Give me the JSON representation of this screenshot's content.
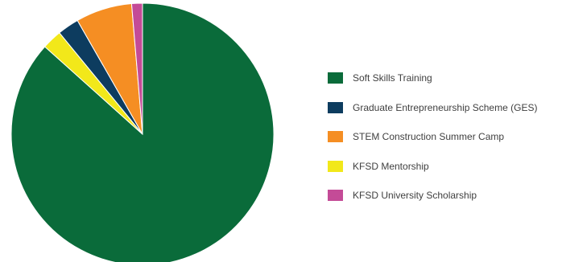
{
  "chart_data": {
    "type": "pie",
    "title": "",
    "legend_position": "right",
    "start_angle_deg": 0,
    "direction": "clockwise",
    "slices": [
      {
        "label": "Soft Skills Training",
        "value": 85.0,
        "color": "#0a6b3a"
      },
      {
        "label": "KFSD Mentorship",
        "value": 2.4,
        "color": "#f2e81a"
      },
      {
        "label": "Graduate Entrepreneurship Scheme (GES)",
        "value": 2.6,
        "color": "#0d3c5f"
      },
      {
        "label": "STEM Construction Summer Camp",
        "value": 6.8,
        "color": "#f58e23"
      },
      {
        "label": "KFSD University Scholarship",
        "value": 1.3,
        "color": "#c44b97"
      }
    ],
    "legend": [
      {
        "label": "Soft Skills Training",
        "color": "#0a6b3a"
      },
      {
        "label": "Graduate Entrepreneurship Scheme (GES)",
        "color": "#0d3c5f"
      },
      {
        "label": "STEM Construction Summer Camp",
        "color": "#f58e23"
      },
      {
        "label": "KFSD Mentorship",
        "color": "#f2e81a"
      },
      {
        "label": "KFSD University Scholarship",
        "color": "#c44b97"
      }
    ]
  }
}
